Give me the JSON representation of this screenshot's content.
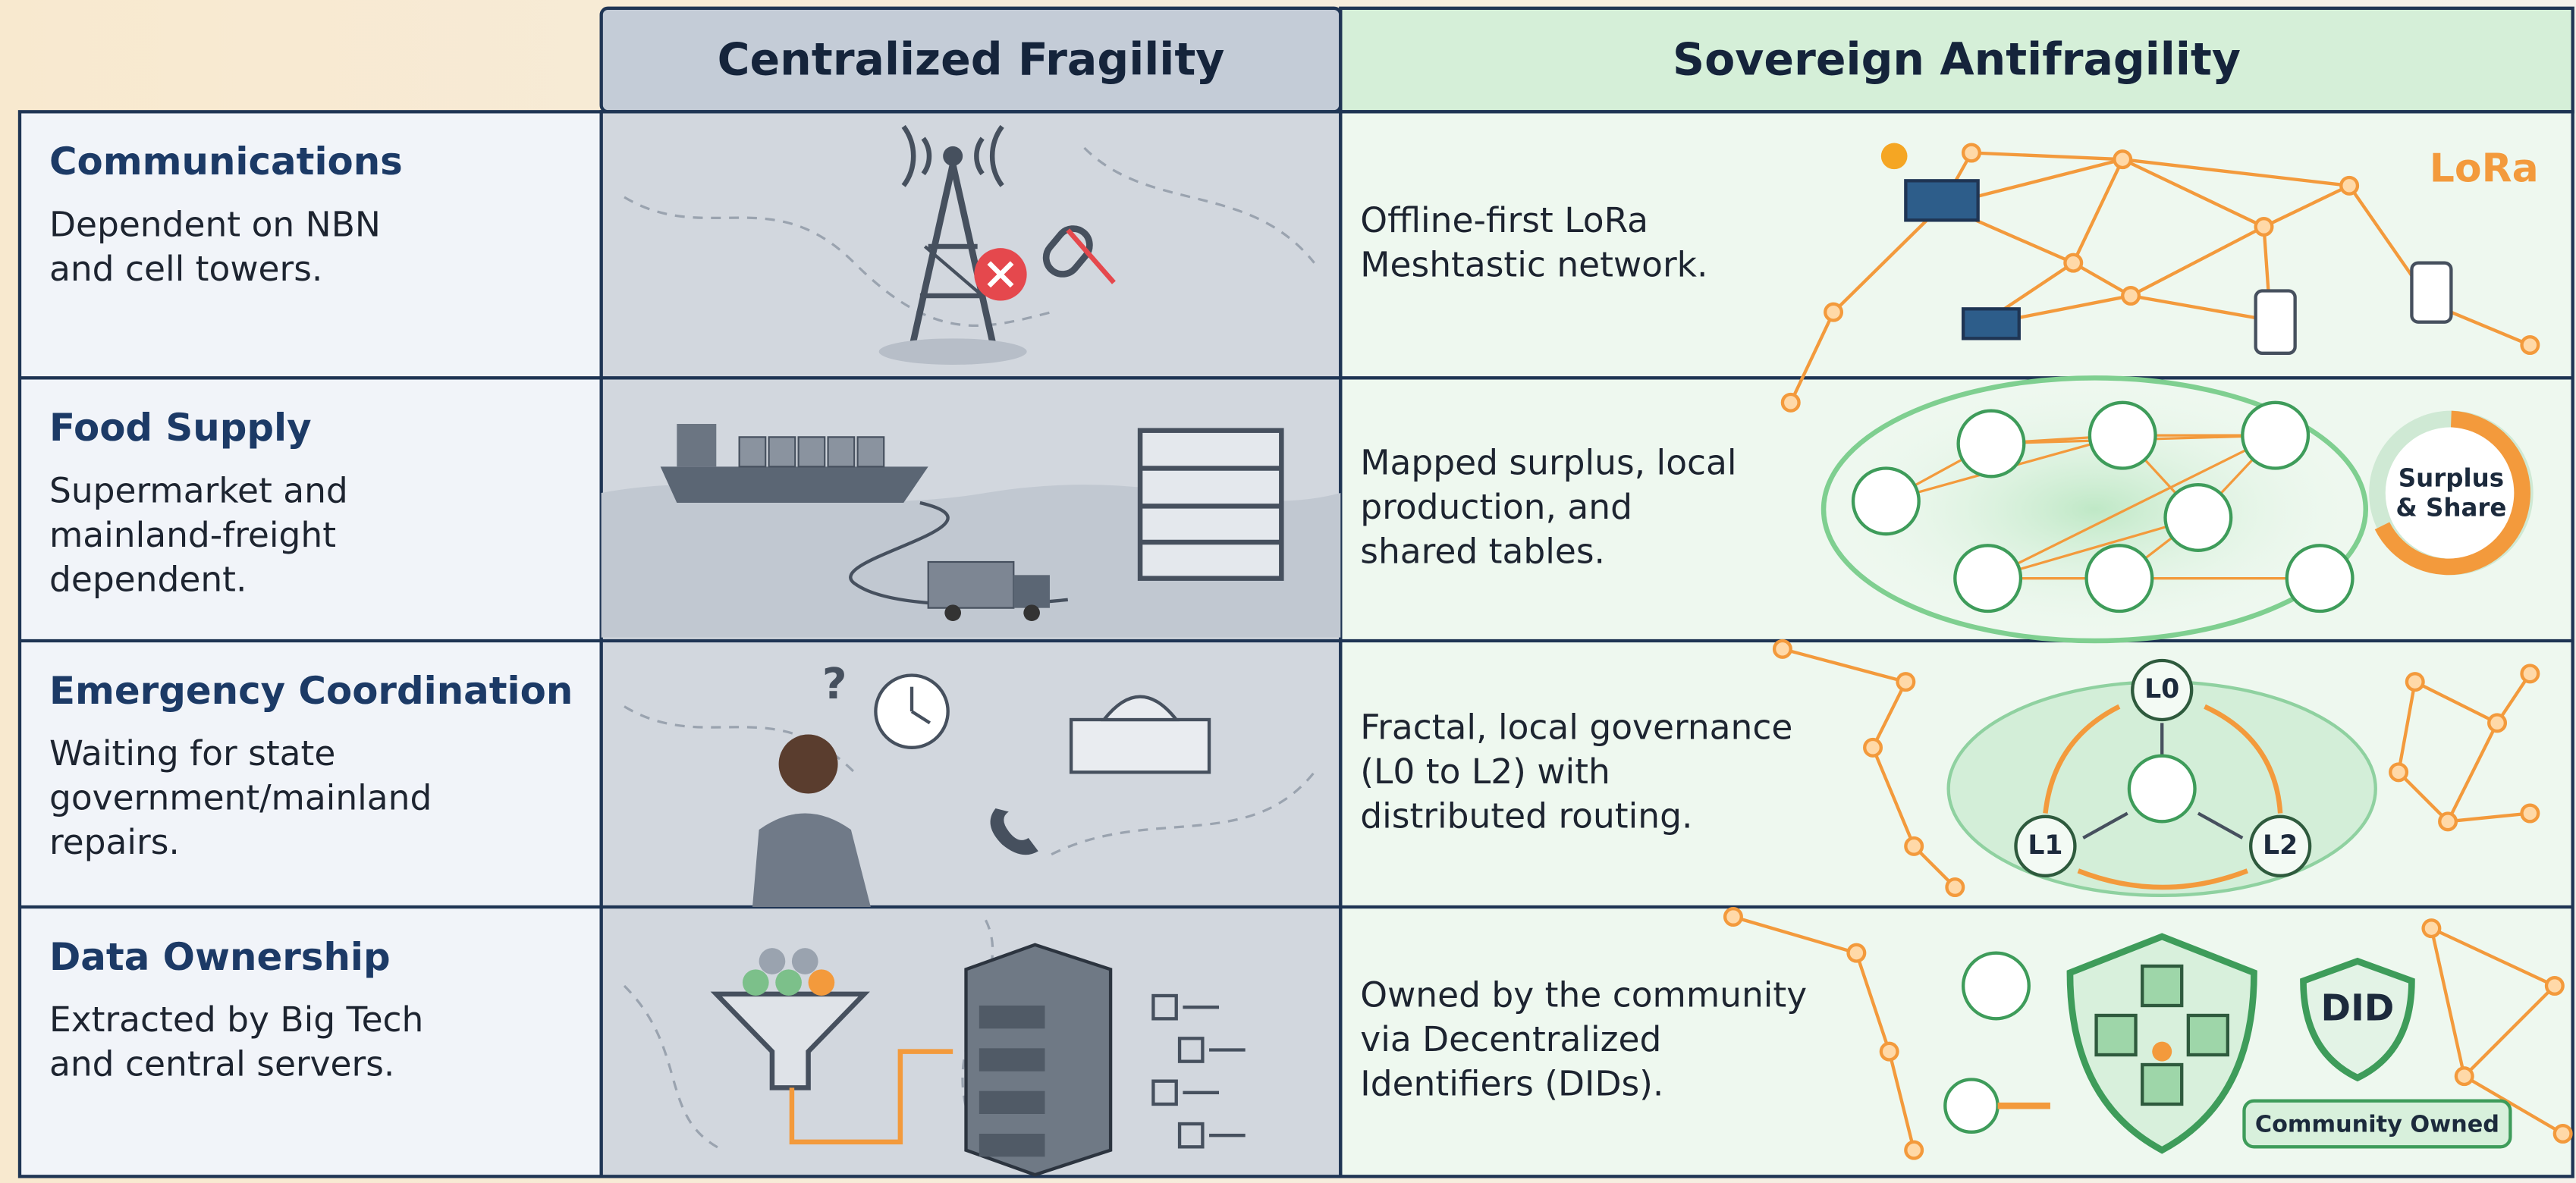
{
  "header": {
    "columns": [
      "Centralized Fragility",
      "Sovereign Antifragility"
    ]
  },
  "rows": [
    {
      "title": "Communications",
      "current": [
        "Dependent on NBN",
        "and cell towers."
      ],
      "alternative": [
        "Offline-first LoRa",
        "Meshtastic network."
      ]
    },
    {
      "title": "Food Supply",
      "current": [
        "Supermarket and",
        "mainland-freight",
        "dependent."
      ],
      "alternative": [
        "Mapped surplus, local",
        "production, and",
        "shared tables."
      ]
    },
    {
      "title": "Emergency Coordination",
      "current": [
        "Waiting for state",
        "government/mainland",
        "repairs."
      ],
      "alternative": [
        "Fractal, local governance",
        "(L0 to L2) with",
        "distributed routing."
      ]
    },
    {
      "title": "Data Ownership",
      "current": [
        "Extracted by Big Tech",
        "and central servers."
      ],
      "alternative": [
        "Owned by the community",
        "via Decentralized",
        "Identifiers (DIDs)."
      ]
    }
  ],
  "illustrations": {
    "lora_logo": "LoRa",
    "surplus_badge": [
      "Surplus",
      "& Share"
    ],
    "governance_levels": [
      "L0",
      "L1",
      "L2"
    ],
    "did_badge": "DID",
    "community_badge": "Community Owned"
  }
}
